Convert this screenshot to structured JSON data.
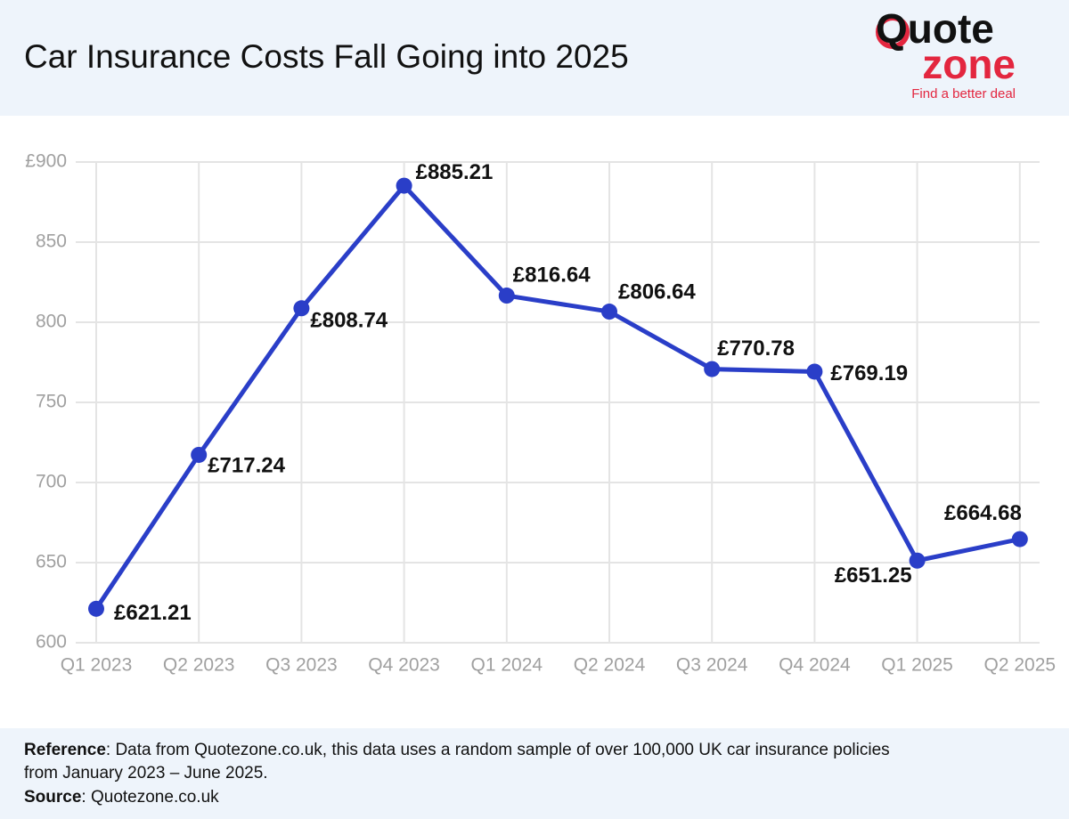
{
  "chart_data": {
    "type": "line",
    "title": "Car Insurance Costs Fall Going into 2025",
    "categories": [
      "Q1 2023",
      "Q2 2023",
      "Q3 2023",
      "Q4 2023",
      "Q1 2024",
      "Q2 2024",
      "Q3 2024",
      "Q4 2024",
      "Q1 2025",
      "Q2 2025"
    ],
    "values": [
      621.21,
      717.24,
      808.74,
      885.21,
      816.64,
      806.64,
      770.78,
      769.19,
      651.25,
      664.68
    ],
    "value_labels": [
      "£621.21",
      "£717.24",
      "£808.74",
      "£885.21",
      "£816.64",
      "£806.64",
      "£770.78",
      "£769.19",
      "£651.25",
      "£664.68"
    ],
    "color": "#2a3ec8",
    "ylim": [
      600,
      900
    ],
    "yticks": [
      600,
      650,
      700,
      750,
      800,
      850,
      {
        "value": 900,
        "label": "£900"
      }
    ],
    "grid": true
  },
  "logo": {
    "line1": "Quote",
    "line2": "zone",
    "tagline": "Find a better deal"
  },
  "footer": {
    "reference_label": "Reference",
    "reference_text": ": Data from Quotezone.co.uk, this data uses a random sample of over 100,000 UK car insurance policies",
    "reference_text_2": "from January 2023 – June 2025.",
    "source_label": "Source",
    "source_text": ": Quotezone.co.uk"
  }
}
